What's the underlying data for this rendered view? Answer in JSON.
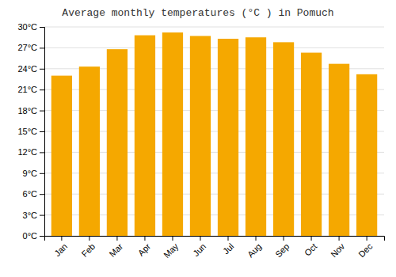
{
  "chart_data": {
    "type": "bar",
    "title": "Average monthly temperatures (°C ) in Pomuch",
    "categories": [
      "Jan",
      "Feb",
      "Mar",
      "Apr",
      "May",
      "Jun",
      "Jul",
      "Aug",
      "Sep",
      "Oct",
      "Nov",
      "Dec"
    ],
    "values": [
      23.0,
      24.3,
      26.8,
      28.8,
      29.2,
      28.7,
      28.3,
      28.5,
      27.8,
      26.3,
      24.7,
      23.2
    ],
    "color": "#F5A800",
    "ylim": [
      0,
      30
    ],
    "yticks": [
      {
        "value": 0,
        "label": "0°C"
      },
      {
        "value": 3,
        "label": "3°C"
      },
      {
        "value": 6,
        "label": "6°C"
      },
      {
        "value": 9,
        "label": "9°C"
      },
      {
        "value": 12,
        "label": "12°C"
      },
      {
        "value": 15,
        "label": "15°C"
      },
      {
        "value": 18,
        "label": "18°C"
      },
      {
        "value": 21,
        "label": "21°C"
      },
      {
        "value": 24,
        "label": "24°C"
      },
      {
        "value": 27,
        "label": "27°C"
      },
      {
        "value": 30,
        "label": "30°C"
      }
    ],
    "grid": true
  }
}
